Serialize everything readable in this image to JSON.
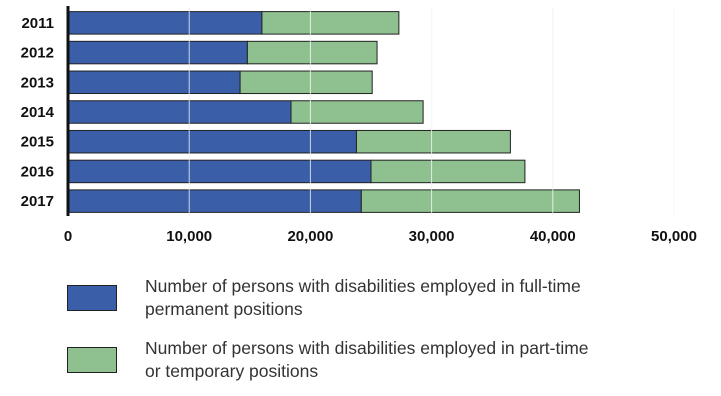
{
  "chart_data": {
    "type": "bar",
    "orientation": "horizontal",
    "stacked": true,
    "categories": [
      "2011",
      "2012",
      "2013",
      "2014",
      "2015",
      "2016",
      "2017"
    ],
    "series": [
      {
        "name": "Number of persons with disabilities employed in full-time permanent positions",
        "color": "#3a5ea8",
        "values": [
          16000,
          14800,
          14200,
          18400,
          23800,
          25000,
          24200
        ]
      },
      {
        "name": "Number of persons with disabilities employed in part-time or temporary positions",
        "color": "#8fc08f",
        "values": [
          11300,
          10700,
          10900,
          10900,
          12700,
          12700,
          18000
        ]
      }
    ],
    "x_ticks": [
      "0",
      "10,000",
      "20,000",
      "30,000",
      "40,000",
      "50,000"
    ],
    "xlim": [
      0,
      50000
    ],
    "grid": true,
    "legend_position": "bottom"
  }
}
